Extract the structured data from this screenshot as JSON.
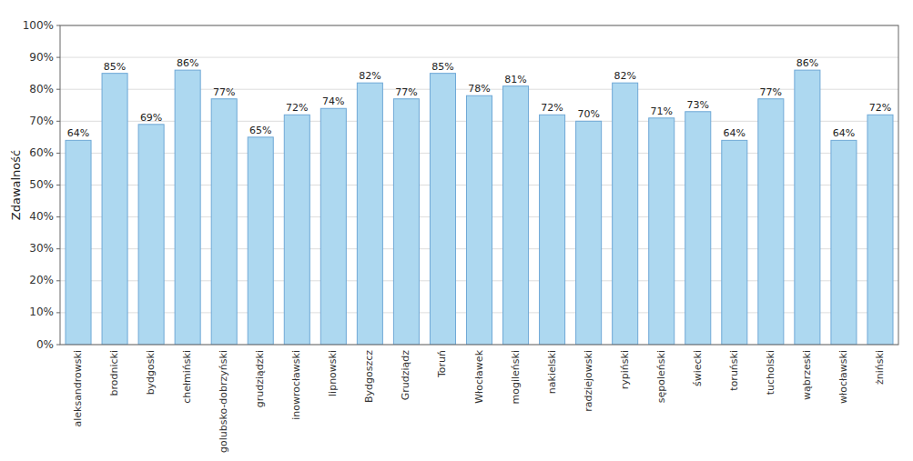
{
  "chart_data": {
    "type": "bar",
    "categories": [
      "aleksandrowski",
      "brodnicki",
      "bydgoski",
      "chełmiński",
      "golubsko-dobrzyński",
      "grudziądzki",
      "inowrocławski",
      "lipnowski",
      "Bydgoszcz",
      "Grudziądz",
      "Toruń",
      "Włocławek",
      "mogileński",
      "nakielski",
      "radziejowski",
      "rypiński",
      "sępoleński",
      "świecki",
      "toruński",
      "tucholski",
      "wąbrzeski",
      "włocławski",
      "żniński"
    ],
    "values": [
      64,
      85,
      69,
      86,
      77,
      65,
      72,
      74,
      82,
      77,
      85,
      78,
      81,
      72,
      70,
      82,
      71,
      73,
      64,
      77,
      86,
      64,
      72
    ],
    "value_labels": [
      "64%",
      "85%",
      "69%",
      "86%",
      "77%",
      "65%",
      "72%",
      "74%",
      "82%",
      "77%",
      "85%",
      "78%",
      "81%",
      "72%",
      "70%",
      "82%",
      "71%",
      "73%",
      "64%",
      "77%",
      "86%",
      "64%",
      "72%"
    ],
    "data_labels": true,
    "color": "#ADD8F0",
    "ylabel": "Zdawalność",
    "ylim": [
      0,
      100
    ],
    "yticks": [
      {
        "value": 0,
        "label": "0%"
      },
      {
        "value": 10,
        "label": "10%"
      },
      {
        "value": 20,
        "label": "20%"
      },
      {
        "value": 30,
        "label": "30%"
      },
      {
        "value": 40,
        "label": "40%"
      },
      {
        "value": 50,
        "label": "50%"
      },
      {
        "value": 60,
        "label": "60%"
      },
      {
        "value": 70,
        "label": "70%"
      },
      {
        "value": 80,
        "label": "80%"
      },
      {
        "value": 90,
        "label": "90%"
      },
      {
        "value": 100,
        "label": "100%"
      }
    ],
    "grid": true
  }
}
